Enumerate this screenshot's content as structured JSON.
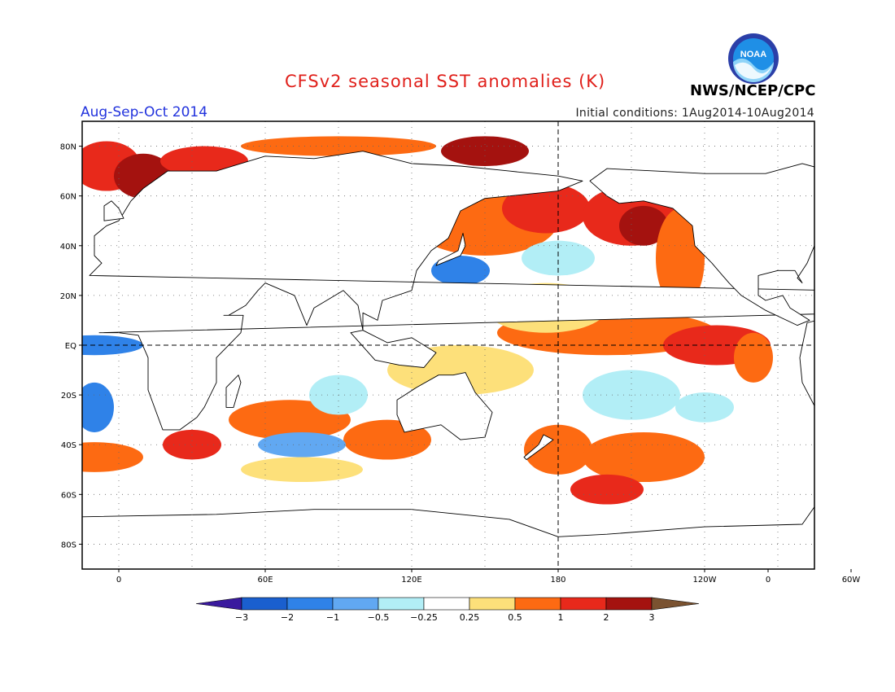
{
  "title": "CFSv2 seasonal SST anomalies (K)",
  "period": "Aug-Sep-Oct 2014",
  "initial_conditions": "Initial conditions: 1Aug2014-10Aug2014",
  "organization": "NWS/NCEP/CPC",
  "logo_text": "NOAA",
  "colors": {
    "title": "#e0201b",
    "period": "#2233dd",
    "land": "#ffffff",
    "coast": "#000000"
  },
  "axes": {
    "lat_labels": [
      "80N",
      "60N",
      "40N",
      "20N",
      "EQ",
      "20S",
      "40S",
      "60S",
      "80S"
    ],
    "lon_labels": [
      "0",
      "60E",
      "120E",
      "180",
      "120W",
      "60W",
      "0"
    ]
  },
  "legend": {
    "tick_labels": [
      "-3",
      "-2",
      "-1",
      "-0.5",
      "-0.25",
      "0.25",
      "0.5",
      "1",
      "2",
      "3"
    ],
    "colors": [
      "#3a1a9e",
      "#1a5fcf",
      "#2f82e8",
      "#61a8f2",
      "#b2eef6",
      "#ffffff",
      "#fde07a",
      "#fd6a12",
      "#e8291b",
      "#a4120f",
      "#7a5230"
    ]
  }
}
